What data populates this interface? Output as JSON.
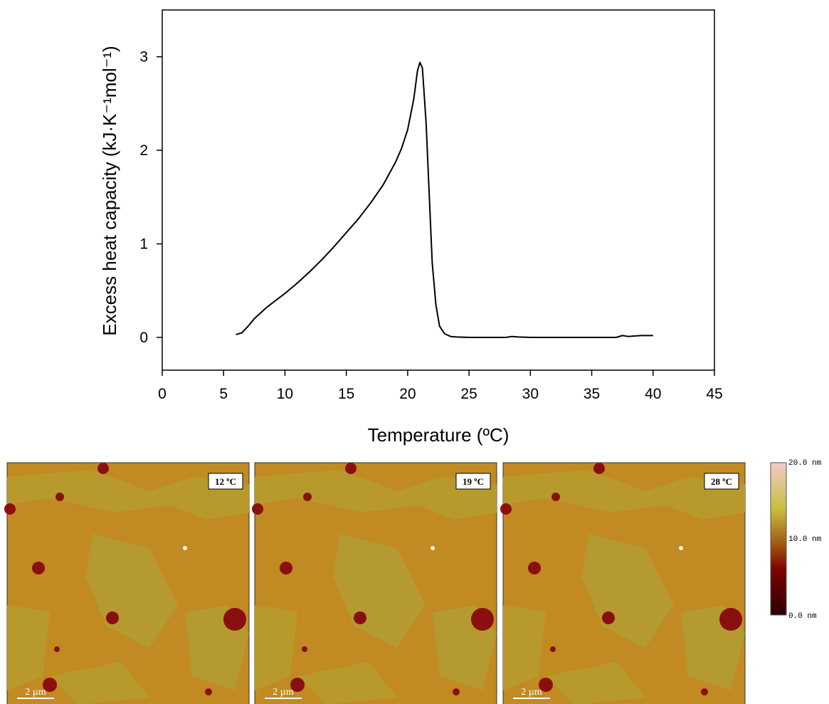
{
  "chart_data": {
    "type": "line",
    "xlabel": "Temperature (ºC)",
    "ylabel": "Excess heat capacity (kJ·K⁻¹mol⁻¹)",
    "x": [
      6,
      6.5,
      7,
      7.5,
      8,
      8.5,
      9,
      10,
      11,
      12,
      13,
      14,
      15,
      16,
      17,
      18,
      19,
      19.5,
      20,
      20.5,
      20.8,
      21,
      21.2,
      21.5,
      21.8,
      22,
      22.3,
      22.6,
      23,
      23.5,
      24,
      25,
      28,
      28.5,
      29,
      30,
      35,
      37,
      37.5,
      38,
      39,
      40
    ],
    "values": [
      0.03,
      0.05,
      0.12,
      0.2,
      0.26,
      0.32,
      0.37,
      0.47,
      0.58,
      0.7,
      0.83,
      0.97,
      1.12,
      1.27,
      1.44,
      1.63,
      1.87,
      2.02,
      2.22,
      2.55,
      2.85,
      2.94,
      2.88,
      2.3,
      1.4,
      0.8,
      0.35,
      0.12,
      0.04,
      0.01,
      0.005,
      0,
      0,
      0.01,
      0.005,
      0,
      0,
      0,
      0.02,
      0.01,
      0.02,
      0.02
    ],
    "color": "#000000",
    "xlim": [
      0,
      45
    ],
    "xticks": [
      0,
      5,
      10,
      15,
      20,
      25,
      30,
      35,
      40,
      45
    ],
    "ylim": [
      -0.35,
      3.5
    ],
    "yticks": [
      0,
      1,
      2,
      3
    ]
  },
  "images": [
    {
      "label": "12 ºC",
      "scale_bar": "2 µm"
    },
    {
      "label": "19 ºC",
      "scale_bar": "2 µm"
    },
    {
      "label": "28 ºC",
      "scale_bar": "2 µm"
    }
  ],
  "colorbar": {
    "labels": [
      "20.0 nm",
      "10.0 nm",
      "0.0 nm"
    ]
  }
}
